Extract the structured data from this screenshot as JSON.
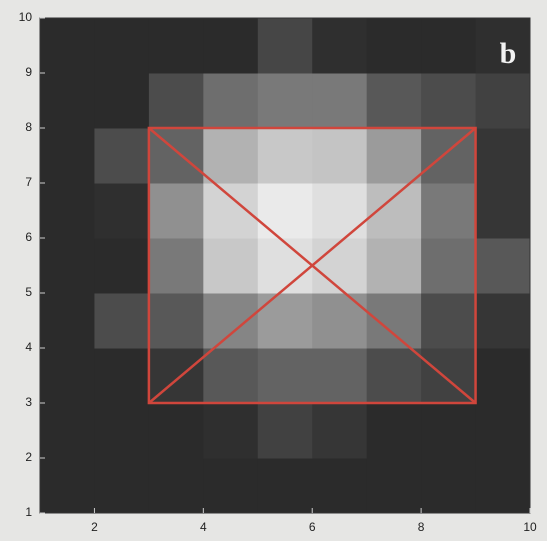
{
  "chart_data": {
    "type": "heatmap",
    "panel_label": "b",
    "xlim": [
      1,
      10
    ],
    "ylim": [
      1,
      10
    ],
    "xticks": [
      2,
      4,
      6,
      8,
      10
    ],
    "yticks": [
      1,
      2,
      3,
      4,
      5,
      6,
      7,
      8,
      9,
      10
    ],
    "z": [
      [
        0.1,
        0.1,
        0.1,
        0.1,
        0.1,
        0.1,
        0.1,
        0.1,
        0.1
      ],
      [
        0.1,
        0.1,
        0.1,
        0.12,
        0.2,
        0.15,
        0.1,
        0.1,
        0.1
      ],
      [
        0.1,
        0.1,
        0.15,
        0.3,
        0.35,
        0.35,
        0.25,
        0.2,
        0.1
      ],
      [
        0.1,
        0.25,
        0.3,
        0.5,
        0.6,
        0.55,
        0.45,
        0.25,
        0.15
      ],
      [
        0.1,
        0.1,
        0.45,
        0.8,
        0.9,
        0.85,
        0.7,
        0.4,
        0.3
      ],
      [
        0.1,
        0.12,
        0.55,
        0.85,
        0.95,
        0.9,
        0.75,
        0.45,
        0.15
      ],
      [
        0.1,
        0.25,
        0.35,
        0.7,
        0.8,
        0.78,
        0.6,
        0.35,
        0.15
      ],
      [
        0.1,
        0.1,
        0.25,
        0.4,
        0.45,
        0.45,
        0.3,
        0.25,
        0.2
      ],
      [
        0.1,
        0.1,
        0.1,
        0.1,
        0.22,
        0.12,
        0.1,
        0.1,
        0.12
      ]
    ],
    "box": {
      "x": [
        3,
        9
      ],
      "y": [
        3,
        8
      ],
      "color": "#d0463c"
    }
  }
}
